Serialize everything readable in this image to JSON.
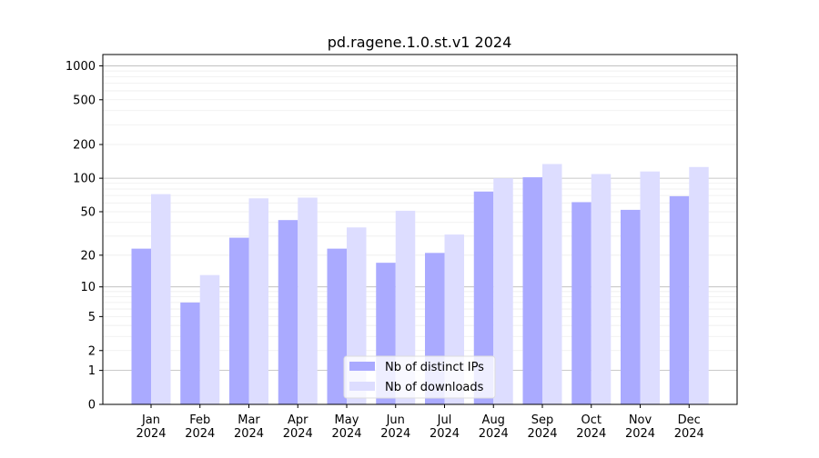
{
  "chart_data": {
    "type": "bar",
    "title": "pd.ragene.1.0.st.v1 2024",
    "xlabel": "",
    "ylabel": "",
    "yscale": "log(y+1)",
    "ylim": [
      0,
      1260
    ],
    "yticks": [
      0,
      1,
      2,
      5,
      10,
      20,
      50,
      100,
      200,
      500,
      1000
    ],
    "grid": true,
    "legend_position": "bottom-center",
    "categories": [
      "Jan\n2024",
      "Feb\n2024",
      "Mar\n2024",
      "Apr\n2024",
      "May\n2024",
      "Jun\n2024",
      "Jul\n2024",
      "Aug\n2024",
      "Sep\n2024",
      "Oct\n2024",
      "Nov\n2024",
      "Dec\n2024"
    ],
    "series": [
      {
        "name": "Nb of distinct IPs",
        "color": "#aaaaff",
        "values": [
          23,
          7,
          29,
          42,
          23,
          17,
          21,
          76,
          102,
          61,
          52,
          69
        ]
      },
      {
        "name": "Nb of downloads",
        "color": "#ddddff",
        "values": [
          72,
          13,
          66,
          67,
          36,
          51,
          31,
          100,
          134,
          109,
          115,
          126
        ]
      }
    ]
  }
}
